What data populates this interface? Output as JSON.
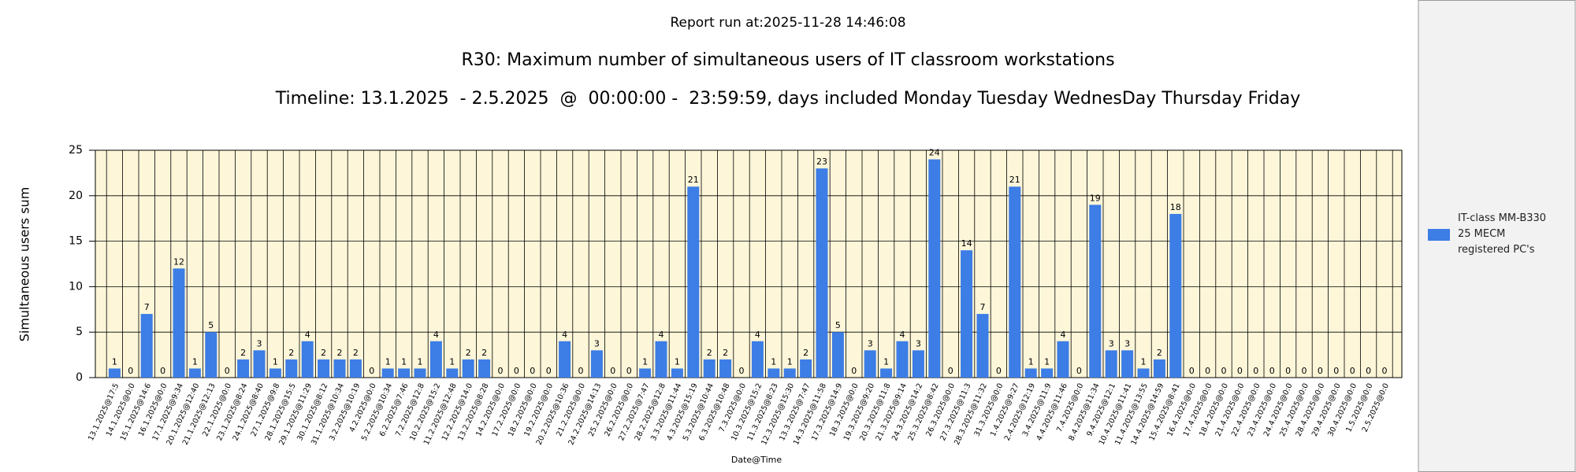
{
  "chart_data": {
    "type": "bar",
    "report_run": "Report run at:2025-11-28 14:46:08",
    "title": "R30: Maximum number of simultaneous users of IT classroom workstations",
    "subtitle": "Timeline: 13.1.2025  - 2.5.2025  @  00:00:00 -  23:59:59, days included Monday Tuesday WednesDay Thursday Friday",
    "x_label": "Date@Time",
    "y_label": "Simultaneous users sum",
    "categories": [
      "13.1.2025@17:5",
      "14.1.2025@0:0",
      "15.1.2025@14:6",
      "16.1.2025@0:0",
      "17.1.2025@9:34",
      "20.1.2025@12:40",
      "21.1.2025@12:13",
      "22.1.2025@0:0",
      "23.1.2025@8:24",
      "24.1.2025@8:40",
      "27.1.2025@9:8",
      "28.1.2025@15:5",
      "29.1.2025@11:29",
      "30.1.2025@8:12",
      "31.1.2025@10:34",
      "3.2.2025@10:19",
      "4.2.2025@0:0",
      "5.2.2025@10:34",
      "6.2.2025@7:46",
      "7.2.2025@12:8",
      "10.2.2025@15:2",
      "11.2.2025@12:48",
      "12.2.2025@14:0",
      "13.2.2025@8:28",
      "14.2.2025@0:0",
      "17.2.2025@0:0",
      "18.2.2025@0:0",
      "19.2.2025@0:0",
      "20.2.2025@10:36",
      "21.2.2025@0:0",
      "24.2.2025@14:13",
      "25.2.2025@0:0",
      "26.2.2025@0:0",
      "27.2.2025@7:47",
      "28.2.2025@12:8",
      "3.3.2025@11:44",
      "4.3.2025@15:19",
      "5.3.2025@10:44",
      "6.3.2025@10:48",
      "7.3.2025@0:0",
      "10.3.2025@15:2",
      "11.3.2025@8:23",
      "12.3.2025@15:30",
      "13.3.2025@7:47",
      "14.3.2025@11:58",
      "17.3.2025@14:9",
      "18.3.2025@0:0",
      "19.3.2025@9:20",
      "20.3.2025@11:8",
      "21.3.2025@9:14",
      "24.3.2025@14:2",
      "25.3.2025@8:42",
      "26.3.2025@0:0",
      "27.3.2025@11:3",
      "28.3.2025@11:32",
      "31.3.2025@0:0",
      "1.4.2025@9:27",
      "2.4.2025@12:19",
      "3.4.2025@11:9",
      "4.4.2025@11:46",
      "7.4.2025@0:0",
      "8.4.2025@11:34",
      "9.4.2025@12:1",
      "10.4.2025@11:41",
      "11.4.2025@13:55",
      "14.4.2025@14:59",
      "15.4.2025@8:41",
      "16.4.2025@0:0",
      "17.4.2025@0:0",
      "18.4.2025@0:0",
      "21.4.2025@0:0",
      "22.4.2025@0:0",
      "23.4.2025@0:0",
      "24.4.2025@0:0",
      "25.4.2025@0:0",
      "28.4.2025@0:0",
      "29.4.2025@0:0",
      "30.4.2025@0:0",
      "1.5.2025@0:0",
      "2.5.2025@0:0"
    ],
    "series": [
      {
        "name": "IT-class MM-B330 25 MECM registered PC's",
        "color": "#3c7de6",
        "values": [
          1,
          0,
          7,
          0,
          12,
          1,
          5,
          0,
          2,
          3,
          1,
          2,
          4,
          2,
          2,
          2,
          0,
          1,
          1,
          1,
          4,
          1,
          2,
          2,
          0,
          0,
          0,
          0,
          4,
          0,
          3,
          0,
          0,
          1,
          4,
          1,
          21,
          2,
          2,
          0,
          4,
          1,
          1,
          2,
          23,
          5,
          0,
          3,
          1,
          4,
          3,
          24,
          0,
          14,
          7,
          0,
          21,
          1,
          1,
          4,
          0,
          19,
          3,
          3,
          1,
          2,
          18,
          0,
          0,
          0,
          0,
          0,
          0,
          0,
          0,
          0,
          0,
          0,
          0,
          0
        ]
      }
    ],
    "ylim": [
      0,
      25
    ],
    "yticks": [
      0,
      5,
      10,
      15,
      20,
      25
    ],
    "grid": true,
    "legend": "right",
    "plot_background": "#fdf6d9"
  }
}
